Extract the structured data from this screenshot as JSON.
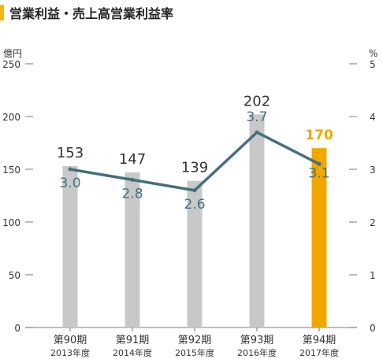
{
  "title": "営業利益・売上高営業利益率",
  "colors": {
    "title_bar": "#f5b800",
    "bar_default": "#c8c8c8",
    "bar_highlight": "#f0a800",
    "line": "#436f80",
    "line_label": "#436f80",
    "bar_label": "#333333",
    "highlight_label": "#f0a800",
    "axis": "#555555"
  },
  "chart_data": {
    "type": "bar",
    "title": "営業利益・売上高営業利益率",
    "categories": [
      "第90期",
      "第91期",
      "第92期",
      "第93期",
      "第94期"
    ],
    "sublabels": [
      "2013年度",
      "2014年度",
      "2015年度",
      "2016年度",
      "2017年度"
    ],
    "highlight_index": 4,
    "left_axis": {
      "unit": "億円",
      "ylim": [
        0,
        250
      ],
      "ticks": [
        0,
        50,
        100,
        150,
        200,
        250
      ]
    },
    "right_axis": {
      "unit": "%",
      "ylim": [
        0,
        5
      ],
      "ticks": [
        0,
        1,
        2,
        3,
        4,
        5
      ]
    },
    "series": [
      {
        "type": "bar",
        "axis": "left",
        "values": [
          153,
          147,
          139,
          202,
          170
        ]
      },
      {
        "type": "line",
        "axis": "right",
        "values": [
          3.0,
          2.8,
          2.6,
          3.7,
          3.1
        ]
      }
    ],
    "bar_labels": [
      "153",
      "147",
      "139",
      "202",
      "170"
    ],
    "line_labels": [
      "3.0",
      "2.8",
      "2.6",
      "3.7",
      "3.1"
    ],
    "grid": false
  }
}
